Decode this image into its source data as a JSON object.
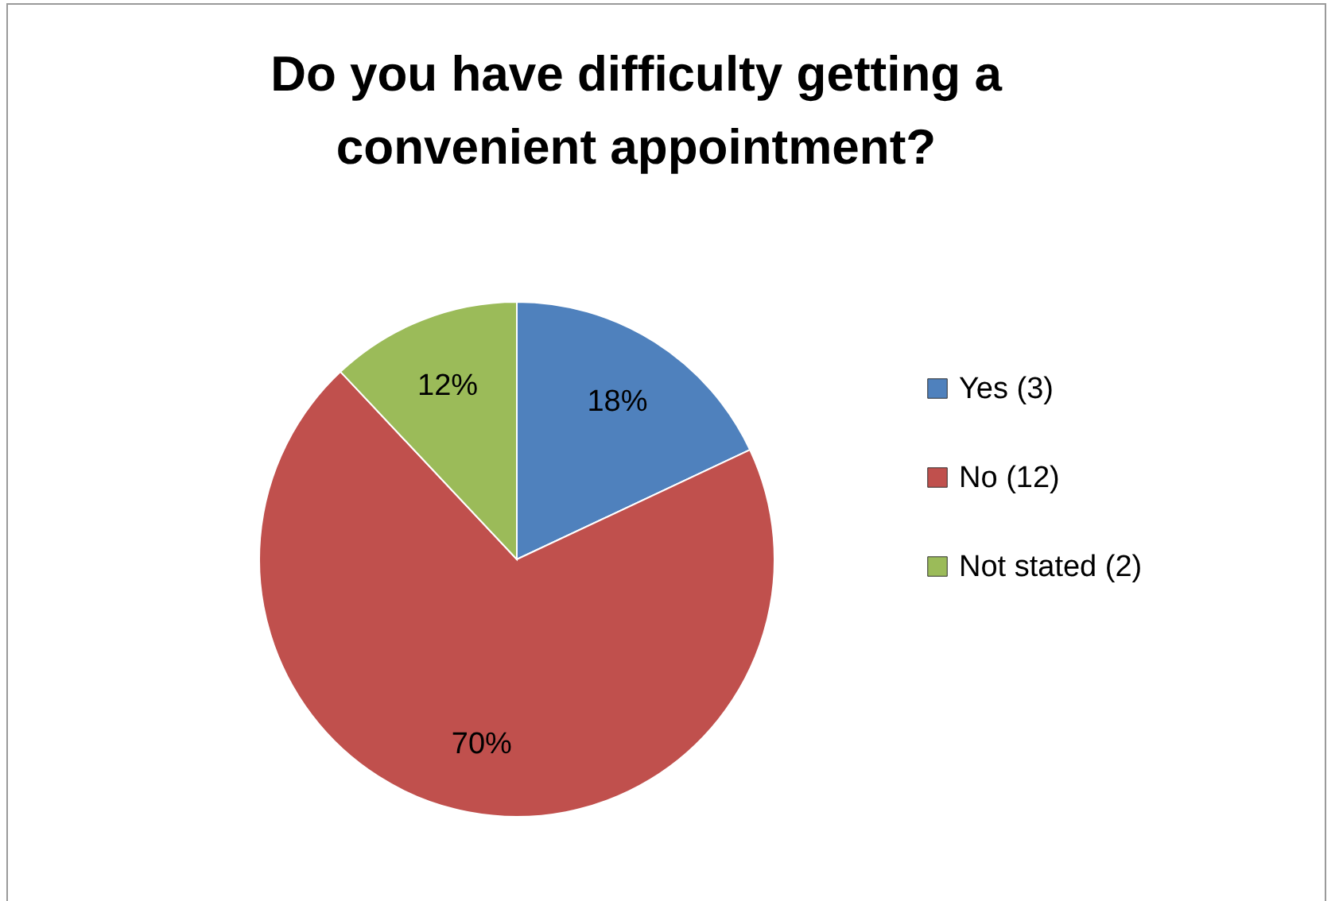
{
  "chart_data": {
    "type": "pie",
    "title": "Do you have difficulty getting a convenient appointment?",
    "categories": [
      "Yes (3)",
      "No (12)",
      "Not stated (2)"
    ],
    "values": [
      18,
      70,
      12
    ],
    "value_labels": [
      "18%",
      "70%",
      "12%"
    ],
    "colors": [
      "#4f81bd",
      "#c0504d",
      "#9bbb59"
    ],
    "legend": "right"
  }
}
